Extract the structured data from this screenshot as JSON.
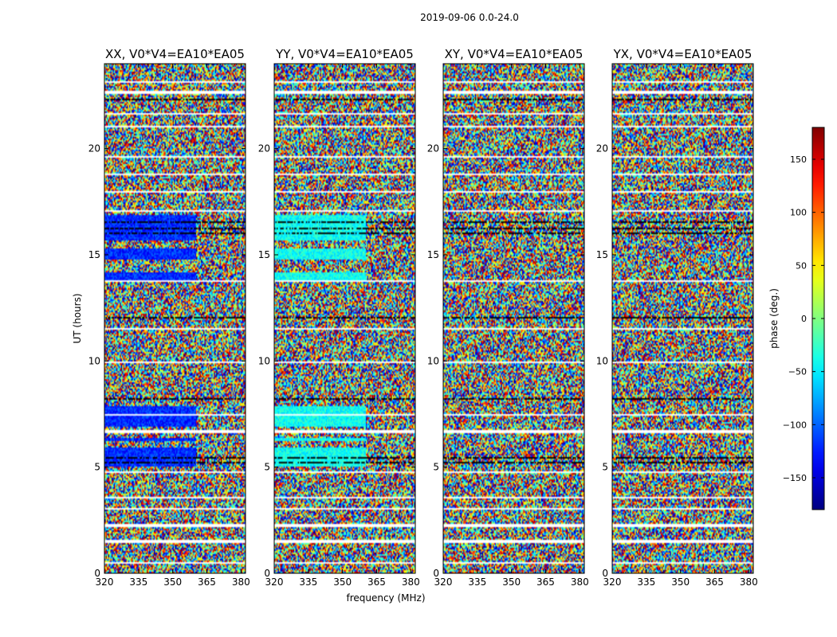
{
  "chart_data": {
    "type": "heatmap",
    "suptitle": "2019-09-06 0.0-24.0",
    "xlabel": "frequency (MHz)",
    "ylabel": "UT (hours)",
    "xlim": [
      320,
      382
    ],
    "ylim": [
      0,
      24
    ],
    "xticks": [
      320,
      335,
      350,
      365,
      380
    ],
    "yticks": [
      0,
      5,
      10,
      15,
      20
    ],
    "colorbar": {
      "label": "phase (deg.)",
      "range": [
        -180,
        180
      ],
      "ticks": [
        150,
        100,
        50,
        0,
        -50,
        -100,
        -150
      ],
      "tick_labels": [
        "150",
        "100",
        "50",
        "0",
        "−50",
        "−100",
        "−150"
      ],
      "colormap": "jet"
    },
    "panels": [
      {
        "title": "XX, V0*V4=EA10*EA05",
        "structure": "coherent",
        "bias": -120
      },
      {
        "title": "YY, V0*V4=EA10*EA05",
        "structure": "coherent",
        "bias": -40
      },
      {
        "title": "XY, V0*V4=EA10*EA05",
        "structure": "noise",
        "bias": 0
      },
      {
        "title": "YX, V0*V4=EA10*EA05",
        "structure": "noise",
        "bias": 0
      }
    ],
    "flagged_intervals_hours": [
      [
        0.45,
        0.55
      ],
      [
        1.45,
        1.55
      ],
      [
        2.15,
        2.3
      ],
      [
        3.0,
        3.1
      ],
      [
        3.5,
        3.6
      ],
      [
        4.75,
        4.82
      ],
      [
        6.6,
        6.75
      ],
      [
        7.4,
        7.48
      ],
      [
        9.9,
        9.98
      ],
      [
        11.45,
        11.55
      ],
      [
        13.7,
        13.78
      ],
      [
        17.0,
        17.1
      ],
      [
        17.9,
        18.0
      ],
      [
        18.75,
        18.85
      ],
      [
        19.6,
        19.68
      ],
      [
        21.0,
        21.08
      ],
      [
        21.6,
        21.68
      ],
      [
        22.6,
        22.75
      ],
      [
        23.1,
        23.2
      ]
    ],
    "dark_intervals_hours": [
      [
        0.28,
        0.32
      ],
      [
        3.8,
        3.85
      ],
      [
        5.0,
        5.05
      ],
      [
        5.2,
        5.25
      ],
      [
        5.4,
        5.45
      ],
      [
        8.2,
        8.25
      ],
      [
        12.0,
        12.05
      ],
      [
        14.6,
        14.65
      ],
      [
        16.0,
        16.05
      ],
      [
        16.2,
        16.25
      ],
      [
        16.5,
        16.55
      ],
      [
        19.1,
        19.15
      ],
      [
        22.3,
        22.35
      ]
    ],
    "coherent_intervals_hours": [
      [
        5.0,
        5.9
      ],
      [
        6.2,
        6.4
      ],
      [
        6.9,
        7.9
      ],
      [
        13.7,
        14.2
      ],
      [
        14.8,
        15.3
      ],
      [
        15.7,
        16.9
      ]
    ]
  }
}
